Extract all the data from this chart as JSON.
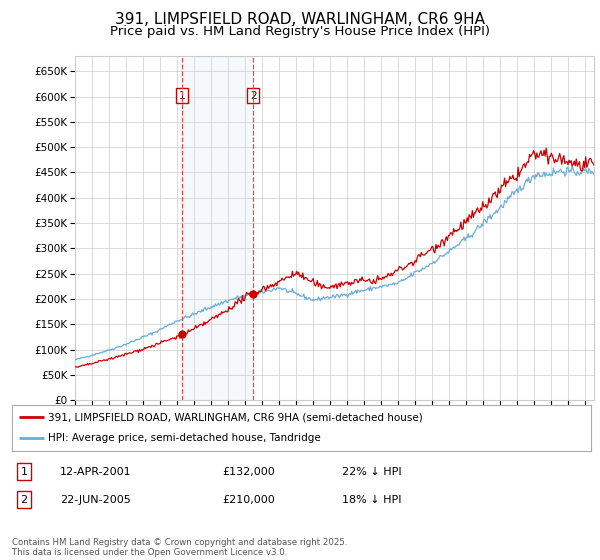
{
  "title": "391, LIMPSFIELD ROAD, WARLINGHAM, CR6 9HA",
  "subtitle": "Price paid vs. HM Land Registry's House Price Index (HPI)",
  "title_fontsize": 11,
  "subtitle_fontsize": 9.5,
  "background_color": "#ffffff",
  "plot_bg_color": "#ffffff",
  "grid_color": "#cccccc",
  "ylim": [
    0,
    680000
  ],
  "yticks": [
    0,
    50000,
    100000,
    150000,
    200000,
    250000,
    300000,
    350000,
    400000,
    450000,
    500000,
    550000,
    600000,
    650000
  ],
  "ytick_labels": [
    "£0",
    "£50K",
    "£100K",
    "£150K",
    "£200K",
    "£250K",
    "£300K",
    "£350K",
    "£400K",
    "£450K",
    "£500K",
    "£550K",
    "£600K",
    "£650K"
  ],
  "hpi_color": "#6baed6",
  "price_color": "#cc0000",
  "sale1_date": 2001.28,
  "sale1_price": 132000,
  "sale1_label": "1",
  "sale2_date": 2005.47,
  "sale2_price": 210000,
  "sale2_label": "2",
  "legend_line1": "391, LIMPSFIELD ROAD, WARLINGHAM, CR6 9HA (semi-detached house)",
  "legend_line2": "HPI: Average price, semi-detached house, Tandridge",
  "annotation_row1": [
    "1",
    "12-APR-2001",
    "£132,000",
    "22% ↓ HPI"
  ],
  "annotation_row2": [
    "2",
    "22-JUN-2005",
    "£210,000",
    "18% ↓ HPI"
  ],
  "footnote": "Contains HM Land Registry data © Crown copyright and database right 2025.\nThis data is licensed under the Open Government Licence v3.0.",
  "xmin": 1995,
  "xmax": 2025.5
}
